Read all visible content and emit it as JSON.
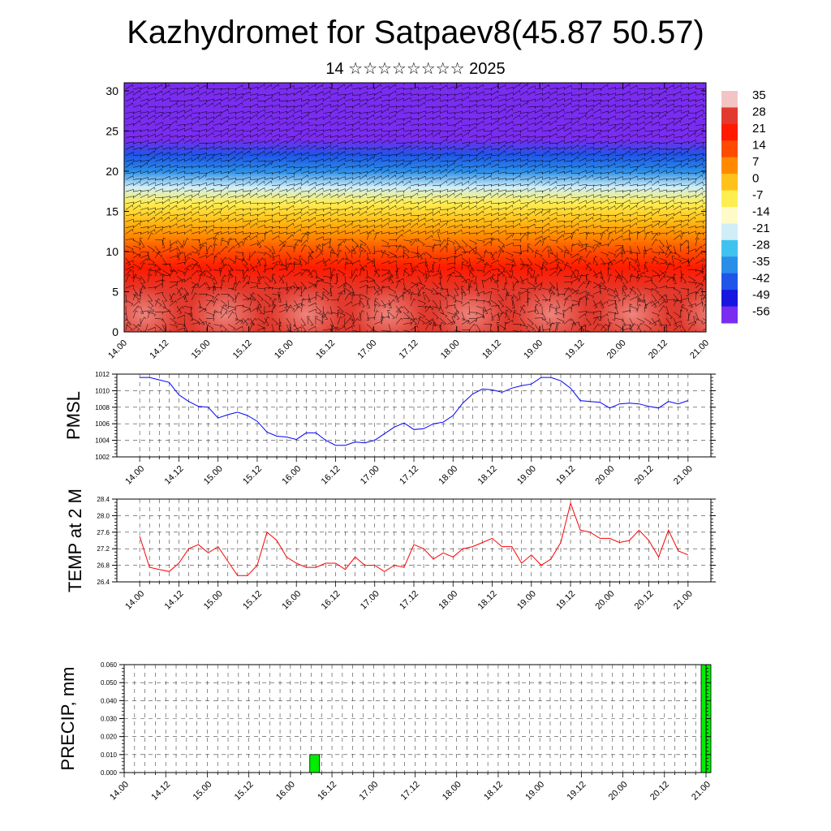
{
  "title": "Kazhydromet for Satpaev8(45.87 50.57)",
  "subtitle": "14 ☆☆☆☆☆☆☆☆ 2025",
  "chart_data": [
    {
      "type": "heatmap",
      "title": "",
      "xlabel": "",
      "ylabel": "",
      "x_ticks": [
        "14.00",
        "14.12",
        "15.00",
        "15.12",
        "16.00",
        "16.12",
        "17.00",
        "17.12",
        "18.00",
        "18.12",
        "19.00",
        "19.12",
        "20.00",
        "20.12",
        "21.00"
      ],
      "y_ticks": [
        "0",
        "5",
        "10",
        "15",
        "20",
        "25",
        "30"
      ],
      "ylim": [
        0,
        31
      ],
      "colorbar_labels": [
        "35",
        "28",
        "21",
        "14",
        "7",
        "0",
        "-7",
        "-14",
        "-21",
        "-28",
        "-35",
        "-42",
        "-49",
        "-56"
      ],
      "colorbar_colors": [
        "#f4c4c4",
        "#e23a2e",
        "#ff1a00",
        "#ff4b00",
        "#ff8a00",
        "#ffc21a",
        "#ffee50",
        "#fffbc8",
        "#cfeef8",
        "#3fc3ee",
        "#2a8ee8",
        "#1f55e8",
        "#1616e0",
        "#7a2cf0"
      ],
      "temperature_profile": [
        {
          "level": 0,
          "value": 30
        },
        {
          "level": 3,
          "value": 30
        },
        {
          "level": 5,
          "value": 25
        },
        {
          "level": 8,
          "value": 21
        },
        {
          "level": 10,
          "value": 14
        },
        {
          "level": 12,
          "value": 7
        },
        {
          "level": 14,
          "value": 0
        },
        {
          "level": 16,
          "value": -7
        },
        {
          "level": 18,
          "value": -21
        },
        {
          "level": 20,
          "value": -35
        },
        {
          "level": 22,
          "value": -45
        },
        {
          "level": 24,
          "value": -56
        },
        {
          "level": 26,
          "value": -56
        },
        {
          "level": 28,
          "value": -56
        },
        {
          "level": 31,
          "value": -56
        }
      ]
    },
    {
      "type": "line",
      "title": "",
      "xlabel": "",
      "ylabel": "PMSL",
      "ylim": [
        1002,
        1012
      ],
      "y_ticks": [
        "1002",
        "1004",
        "1006",
        "1008",
        "1010",
        "1012"
      ],
      "x_ticks": [
        "14.00",
        "14.12",
        "15.00",
        "15.12",
        "16.00",
        "16.12",
        "17.00",
        "17.12",
        "18.00",
        "18.12",
        "19.00",
        "19.12",
        "20.00",
        "20.12",
        "21.00"
      ],
      "x_start": 0,
      "x_step": 3,
      "color": "#0000ff",
      "series": [
        {
          "values": [
            1011.6,
            1011.6,
            1011.3,
            1011.0,
            1009.5,
            1008.7,
            1008.1,
            1008.0,
            1006.7,
            1007.1,
            1007.4,
            1007.0,
            1006.3,
            1005.0,
            1004.5,
            1004.4,
            1004.1,
            1004.9,
            1004.9,
            1004.0,
            1003.4,
            1003.4,
            1003.8,
            1003.7,
            1004.0,
            1004.8,
            1005.6,
            1006.1,
            1005.3,
            1005.4,
            1006.0,
            1006.2,
            1007.0,
            1008.5,
            1009.6,
            1010.2,
            1010.1,
            1009.8,
            1010.3,
            1010.6,
            1010.8,
            1011.6,
            1011.6,
            1011.2,
            1010.3,
            1008.8,
            1008.7,
            1008.6,
            1007.9,
            1008.4,
            1008.5,
            1008.4,
            1008.1,
            1007.9,
            1008.7,
            1008.4,
            1008.8
          ]
        }
      ]
    },
    {
      "type": "line",
      "title": "",
      "xlabel": "",
      "ylabel": "TEMP at 2 M",
      "ylim": [
        26.4,
        28.4
      ],
      "y_ticks": [
        "26.4",
        "26.8",
        "27.2",
        "27.6",
        "28.0",
        "28.4"
      ],
      "x_ticks": [
        "14.00",
        "14.12",
        "15.00",
        "15.12",
        "16.00",
        "16.12",
        "17.00",
        "17.12",
        "18.00",
        "18.12",
        "19.00",
        "19.12",
        "20.00",
        "20.12",
        "21.00"
      ],
      "x_start": 0,
      "x_step": 3,
      "color": "#ff0000",
      "series": [
        {
          "values": [
            27.5,
            26.75,
            26.7,
            26.65,
            26.85,
            27.2,
            27.3,
            27.1,
            27.25,
            26.9,
            26.55,
            26.55,
            26.8,
            27.6,
            27.4,
            27.0,
            26.85,
            26.75,
            26.75,
            26.85,
            26.85,
            26.7,
            27.0,
            26.8,
            26.8,
            26.65,
            26.8,
            26.75,
            27.3,
            27.2,
            26.95,
            27.1,
            27.0,
            27.2,
            27.25,
            27.35,
            27.45,
            27.25,
            27.25,
            26.85,
            27.05,
            26.8,
            26.95,
            27.35,
            28.3,
            27.65,
            27.6,
            27.45,
            27.45,
            27.35,
            27.4,
            27.65,
            27.4,
            27.0,
            27.65,
            27.15,
            27.05
          ]
        }
      ]
    },
    {
      "type": "bar",
      "title": "",
      "xlabel": "",
      "ylabel": "PRECIP, mm",
      "ylim": [
        0,
        0.06
      ],
      "y_ticks": [
        "0.000",
        "0.010",
        "0.020",
        "0.030",
        "0.040",
        "0.050",
        "0.060"
      ],
      "x_ticks": [
        "14.00",
        "14.12",
        "15.00",
        "15.12",
        "16.00",
        "16.12",
        "17.00",
        "17.12",
        "18.00",
        "18.12",
        "19.00",
        "19.12",
        "20.00",
        "20.12",
        "21.00"
      ],
      "color": "#00ee00",
      "bars": [
        {
          "x": 55,
          "value": 0.01
        },
        {
          "x": 168,
          "value": 0.06
        }
      ]
    }
  ]
}
